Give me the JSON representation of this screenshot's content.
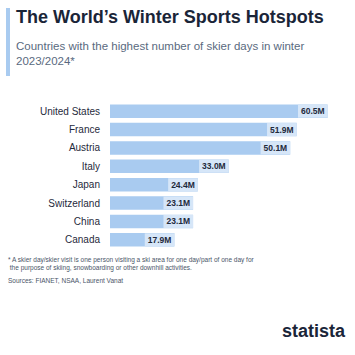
{
  "chart_data": {
    "type": "bar",
    "orientation": "horizontal",
    "title": "The World’s Winter Sports Hotspots",
    "subtitle": "Countries with the highest number of skier days in winter 2023/2024*",
    "categories": [
      "United States",
      "France",
      "Austria",
      "Italy",
      "Japan",
      "Switzerland",
      "China",
      "Canada"
    ],
    "values": [
      60.5,
      51.9,
      50.1,
      33.0,
      24.4,
      23.1,
      23.1,
      17.9
    ],
    "value_labels": [
      "60.5M",
      "51.9M",
      "50.1M",
      "33.0M",
      "24.4M",
      "23.1M",
      "23.1M",
      "17.9M"
    ],
    "color": "#a9cbf0",
    "xlim": [
      0,
      62
    ],
    "data_labels": true,
    "tick_labels": "y",
    "grid": false,
    "footnote": "* A skier day/skier visit is one person visiting a ski area for one day/part of one day for the purpose of skiing, snowboarding or other downhill activities.",
    "source": "Sources: FIANET, NSAA, Laurent Vanat",
    "logo": "statista"
  }
}
